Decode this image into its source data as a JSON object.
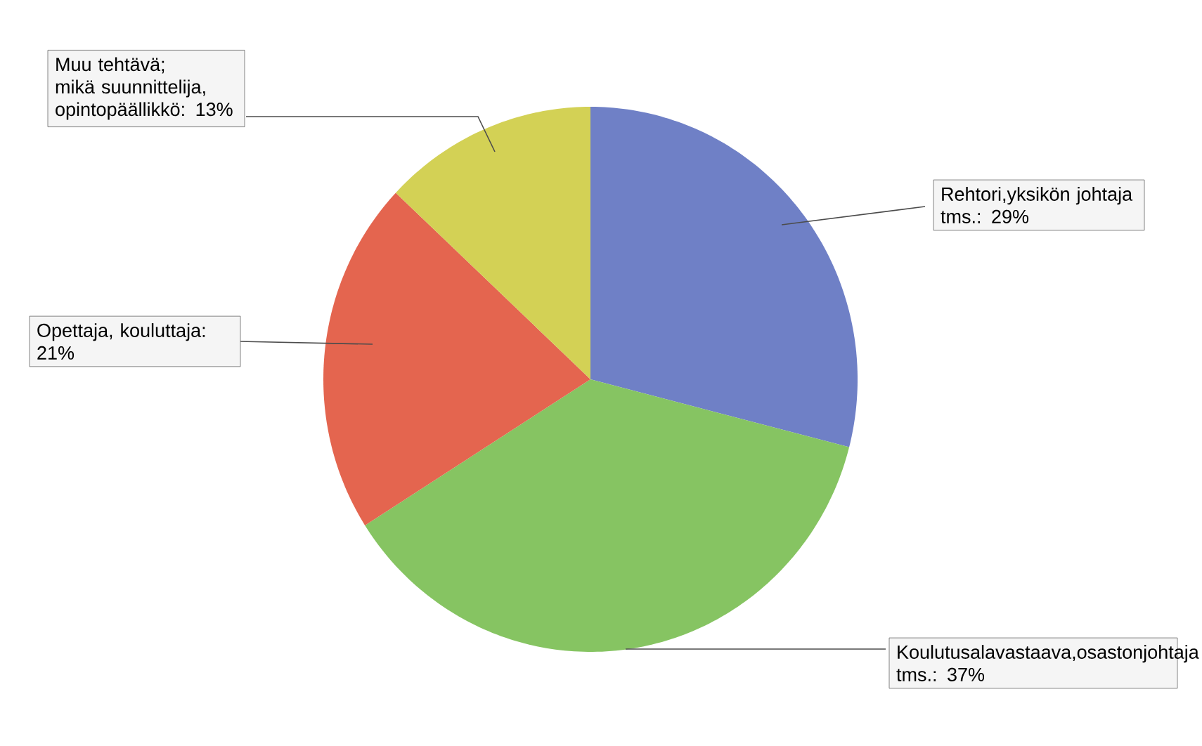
{
  "chart_data": {
    "type": "pie",
    "categories": [
      "Rehtori,yksikön johtaja tms.",
      "Koulutusalavastaava,osastonjohtaja tms.",
      "Opettaja, kouluttaja",
      "Muu tehtävä; mikä suunnittelija, opintopäällikkö"
    ],
    "values": [
      29,
      37,
      21,
      13
    ],
    "value_labels": [
      ": 29%",
      ": 37%",
      ": 21%",
      ": 13%"
    ],
    "colors": [
      "#6f80c6",
      "#86c462",
      "#e4654f",
      "#d3d155"
    ]
  }
}
